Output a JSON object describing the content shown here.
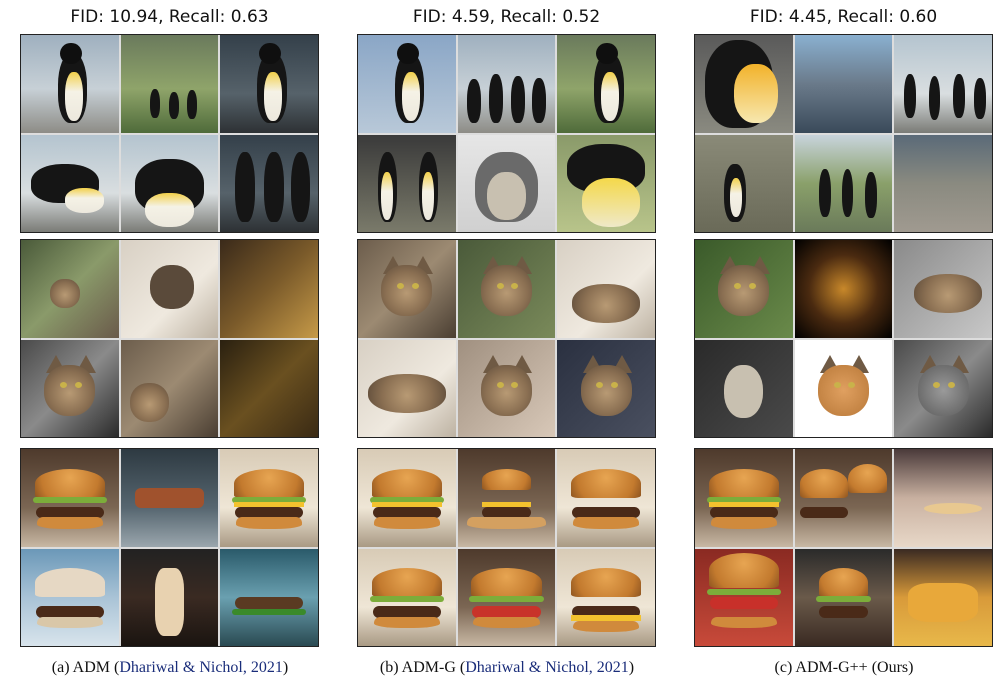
{
  "panels": [
    {
      "title": "FID: 10.94, Recall: 0.63",
      "caption_prefix": "(a) ADM (",
      "caption_cite": "Dhariwal & Nichol, 2021",
      "caption_suffix": ")"
    },
    {
      "title": "FID: 4.59, Recall: 0.52",
      "caption_prefix": "(b) ADM-G (",
      "caption_cite": "Dhariwal & Nichol, 2021",
      "caption_suffix": ")"
    },
    {
      "title": "FID: 4.45, Recall: 0.60",
      "caption_prefix": "(c) ADM-G++ (Ours)",
      "caption_cite": "",
      "caption_suffix": ""
    }
  ],
  "colors": {
    "citation": "#1a2d7a",
    "border": "#222222"
  }
}
